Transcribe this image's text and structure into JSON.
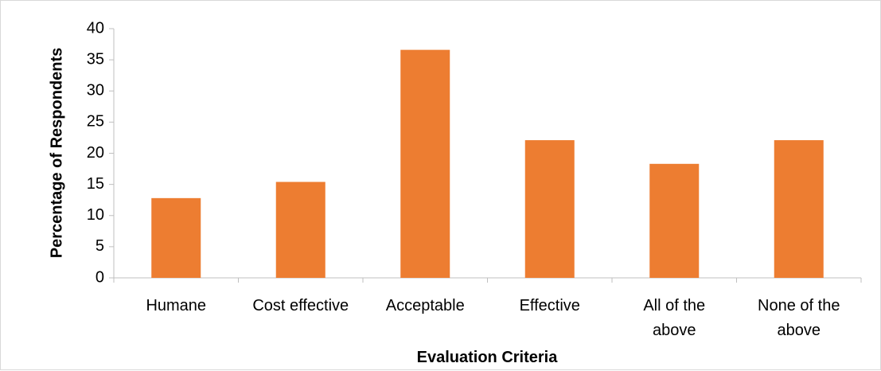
{
  "chart_data": {
    "type": "bar",
    "categories": [
      "Humane",
      "Cost effective",
      "Acceptable",
      "Effective",
      "All of the above",
      "None of the above"
    ],
    "category_label_lines": [
      [
        "Humane"
      ],
      [
        "Cost effective"
      ],
      [
        "Acceptable"
      ],
      [
        "Effective"
      ],
      [
        "All of the",
        "above"
      ],
      [
        "None of the",
        "above"
      ]
    ],
    "values": [
      12.8,
      15.4,
      36.6,
      22.1,
      18.3,
      22.1
    ],
    "title": "",
    "xlabel": "Evaluation Criteria",
    "ylabel": "Percentage of Respondents",
    "ylim": [
      0,
      40
    ],
    "yticks": [
      0,
      5,
      10,
      15,
      20,
      25,
      30,
      35,
      40
    ],
    "grid": false,
    "legend": "none",
    "bar_color": "#ed7d31",
    "axis_color": "#bfbfbf"
  }
}
